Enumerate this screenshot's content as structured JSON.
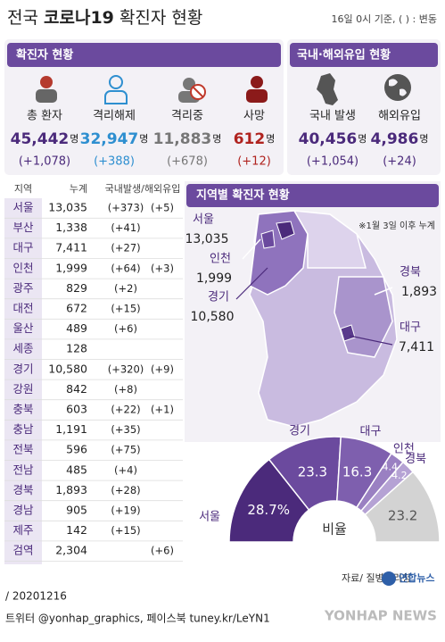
{
  "header": {
    "title_prefix": "전국",
    "title_bold": "코로나19",
    "title_suffix": "확진자 현황",
    "note": "16일 0시 기준, ( ) : 변동"
  },
  "confirmed": {
    "title": "확진자 현황",
    "items": [
      {
        "label": "총 환자",
        "value": "45,442",
        "unit": "명",
        "change": "(+1,078)"
      },
      {
        "label": "격리해제",
        "value": "32,947",
        "unit": "명",
        "change": "(+388)"
      },
      {
        "label": "격리중",
        "value": "11,883",
        "unit": "명",
        "change": "(+678)"
      },
      {
        "label": "사망",
        "value": "612",
        "unit": "명",
        "change": "(+12)"
      }
    ]
  },
  "origin": {
    "title": "국내·해외유입 현황",
    "items": [
      {
        "label": "국내 발생",
        "value": "40,456",
        "unit": "명",
        "change": "(+1,054)"
      },
      {
        "label": "해외유입",
        "value": "4,986",
        "unit": "명",
        "change": "(+24)"
      }
    ]
  },
  "table": {
    "columns": [
      "지역",
      "누계",
      "국내발생/해외유입"
    ],
    "rows": [
      [
        "서울",
        "13,035",
        "(+373)",
        "(+5)"
      ],
      [
        "부산",
        "1,338",
        "(+41)",
        null
      ],
      [
        "대구",
        "7,411",
        "(+27)",
        null
      ],
      [
        "인천",
        "1,999",
        "(+64)",
        "(+3)"
      ],
      [
        "광주",
        "829",
        "(+2)",
        null
      ],
      [
        "대전",
        "672",
        "(+15)",
        null
      ],
      [
        "울산",
        "489",
        "(+6)",
        null
      ],
      [
        "세종",
        "128",
        null,
        null
      ],
      [
        "경기",
        "10,580",
        "(+320)",
        "(+9)"
      ],
      [
        "강원",
        "842",
        "(+8)",
        null
      ],
      [
        "충북",
        "603",
        "(+22)",
        "(+1)"
      ],
      [
        "충남",
        "1,191",
        "(+35)",
        null
      ],
      [
        "전북",
        "596",
        "(+75)",
        null
      ],
      [
        "전남",
        "485",
        "(+4)",
        null
      ],
      [
        "경북",
        "1,893",
        "(+28)",
        null
      ],
      [
        "경남",
        "905",
        "(+19)",
        null
      ],
      [
        "제주",
        "142",
        "(+15)",
        null
      ],
      [
        "검역",
        "2,304",
        null,
        "(+6)"
      ]
    ]
  },
  "map": {
    "title": "지역별 확진자 현황",
    "note": "※1월 3일 이후 누계",
    "labels": [
      {
        "region": "서울",
        "value": "13,035"
      },
      {
        "region": "인천",
        "value": "1,999"
      },
      {
        "region": "경기",
        "value": "10,580"
      },
      {
        "region": "경북",
        "value": "1,893"
      },
      {
        "region": "대구",
        "value": "7,411"
      }
    ]
  },
  "chart_data": {
    "type": "half-donut",
    "center_label": "비율",
    "categories": [
      "서울",
      "경기",
      "대구",
      "인천",
      "경북",
      null
    ],
    "values": [
      28.7,
      23.3,
      16.3,
      4.4,
      4.2,
      23.2
    ],
    "value_labels": [
      "28.7%",
      "23.3",
      "16.3",
      "4.4",
      "4.2",
      "23.2"
    ],
    "colors": [
      "#4b2a7b",
      "#6b4a9e",
      "#7e5fae",
      "#9a80c2",
      "#b5a2d4",
      "#d3d3d3"
    ]
  },
  "footer": {
    "source": "자료/ 질병관리청",
    "logo": "연합뉴스",
    "date": "/ 20201216",
    "social": "트위터 @yonhap_graphics, 페이스북 tuney.kr/LeYN1",
    "watermark": "YONHAP NEWS"
  }
}
